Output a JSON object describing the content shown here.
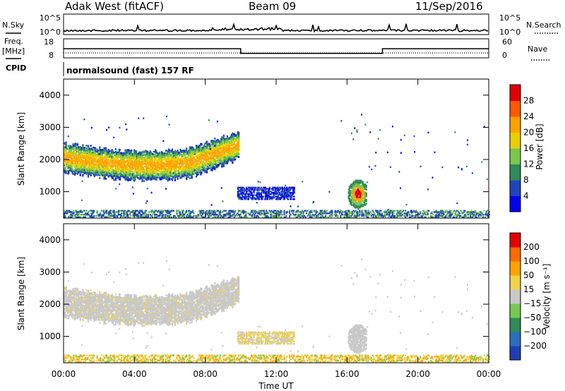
{
  "header": {
    "station": "Adak West (fitACF)",
    "beam": "Beam 09",
    "date": "11/Sep/2016"
  },
  "strips": {
    "nsky_label": "N.Sky",
    "nsearch_label": "N.Search",
    "noise_ticks": [
      "10^5",
      "10^0"
    ],
    "freq_label": "Freq.",
    "freq_unit": "[MHz]",
    "freq_ticks": [
      "18",
      "8"
    ],
    "nave_label": "Nave",
    "nave_ticks": [
      "60",
      "0"
    ],
    "cpid_label": "CPID",
    "cpid_text": "normalsound (fast) 157 RF"
  },
  "x_axis": {
    "label": "Time UT",
    "ticks": [
      "00:00",
      "04:00",
      "08:00",
      "12:00",
      "16:00",
      "20:00",
      "00:00"
    ]
  },
  "power_panel": {
    "ylabel": "Slant Range [km]",
    "yticks": [
      "1000",
      "2000",
      "3000",
      "4000"
    ],
    "colorbar_label": "Power [dB]",
    "colorbar_ticks": [
      "4",
      "8",
      "12",
      "16",
      "20",
      "24",
      "28"
    ],
    "colors": [
      "#0000ee",
      "#2244bb",
      "#2e8b57",
      "#7ac74f",
      "#e8d000",
      "#ffa200",
      "#ff5a00",
      "#e00000"
    ]
  },
  "velocity_panel": {
    "ylabel": "Slant Range [km]",
    "yticks": [
      "1000",
      "2000",
      "3000",
      "4000"
    ],
    "colorbar_label": "Velocity [m s⁻¹]",
    "colorbar_ticks": [
      "200",
      "100",
      "50",
      "15",
      "−15",
      "−50",
      "−100",
      "−200"
    ],
    "colors": [
      "#1f3fb0",
      "#2a6fc0",
      "#2e8b57",
      "#78c850",
      "#c8c8c8",
      "#f0d24a",
      "#ffa500",
      "#ff6a00",
      "#e00000"
    ]
  },
  "chart_data": {
    "type": "heatmap",
    "x": {
      "unit": "hours UT",
      "range": [
        0,
        24
      ]
    },
    "y": {
      "unit": "km",
      "range": [
        180,
        4500
      ]
    },
    "frequency_mhz": [
      {
        "start": 0,
        "end": 10,
        "value": 13
      },
      {
        "start": 10,
        "end": 18,
        "value": 10
      },
      {
        "start": 18,
        "end": 24,
        "value": 13
      }
    ],
    "power_echo_regions": [
      {
        "t_start": 0.0,
        "t_end": 9.9,
        "range_km_center": 1900,
        "power_db": 18,
        "note": "main band"
      },
      {
        "t_start": 9.8,
        "t_end": 13.0,
        "range_km_center": 950,
        "power_db": 10
      },
      {
        "t_start": 15.8,
        "t_end": 17.1,
        "range_km_center": 950,
        "power_db": 24
      },
      {
        "t_start": 0.0,
        "t_end": 24.0,
        "range_km_center": 250,
        "power_db": 8,
        "note": "near range"
      }
    ],
    "velocity_echo_regions": [
      {
        "t_start": 0.0,
        "t_end": 9.9,
        "range_km_center": 1900,
        "velocity_ms": 0
      },
      {
        "t_start": 9.8,
        "t_end": 13.0,
        "range_km_center": 950,
        "velocity_ms": -30
      },
      {
        "t_start": 15.8,
        "t_end": 17.1,
        "range_km_center": 950,
        "velocity_ms": 0
      },
      {
        "t_start": 0.0,
        "t_end": 24.0,
        "range_km_center": 250,
        "velocity_ms": -40
      }
    ]
  }
}
